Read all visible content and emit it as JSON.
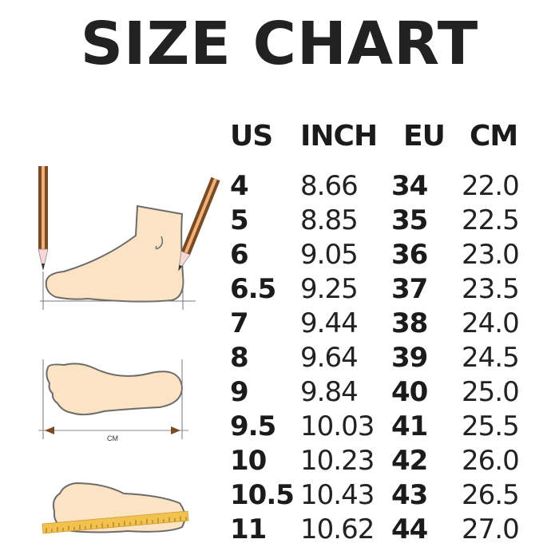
{
  "title": "SIZE CHART",
  "headers": {
    "us": "US",
    "inch": "INCH",
    "eu": "EU",
    "cm": "CM"
  },
  "rows": [
    {
      "us": "4",
      "inch": "8.66",
      "eu": "34",
      "cm": "22.0"
    },
    {
      "us": "5",
      "inch": "8.85",
      "eu": "35",
      "cm": "22.5"
    },
    {
      "us": "6",
      "inch": "9.05",
      "eu": "36",
      "cm": "23.0"
    },
    {
      "us": "6.5",
      "inch": "9.25",
      "eu": "37",
      "cm": "23.5"
    },
    {
      "us": "7",
      "inch": "9.44",
      "eu": "38",
      "cm": "24.0"
    },
    {
      "us": "8",
      "inch": "9.64",
      "eu": "39",
      "cm": "24.5"
    },
    {
      "us": "9",
      "inch": "9.84",
      "eu": "40",
      "cm": "25.0"
    },
    {
      "us": "9.5",
      "inch": "10.03",
      "eu": "41",
      "cm": "25.5"
    },
    {
      "us": "10",
      "inch": "10.23",
      "eu": "42",
      "cm": "26.0"
    },
    {
      "us": "10.5",
      "inch": "10.43",
      "eu": "43",
      "cm": "26.5"
    },
    {
      "us": "11",
      "inch": "10.62",
      "eu": "44",
      "cm": "27.0"
    }
  ],
  "illustration": {
    "measure_label": "CM"
  },
  "colors": {
    "skin": "#fbe3c4",
    "outline": "#6b6b6b",
    "pencil": "#7a4a22",
    "ruler": "#f2c14e"
  }
}
